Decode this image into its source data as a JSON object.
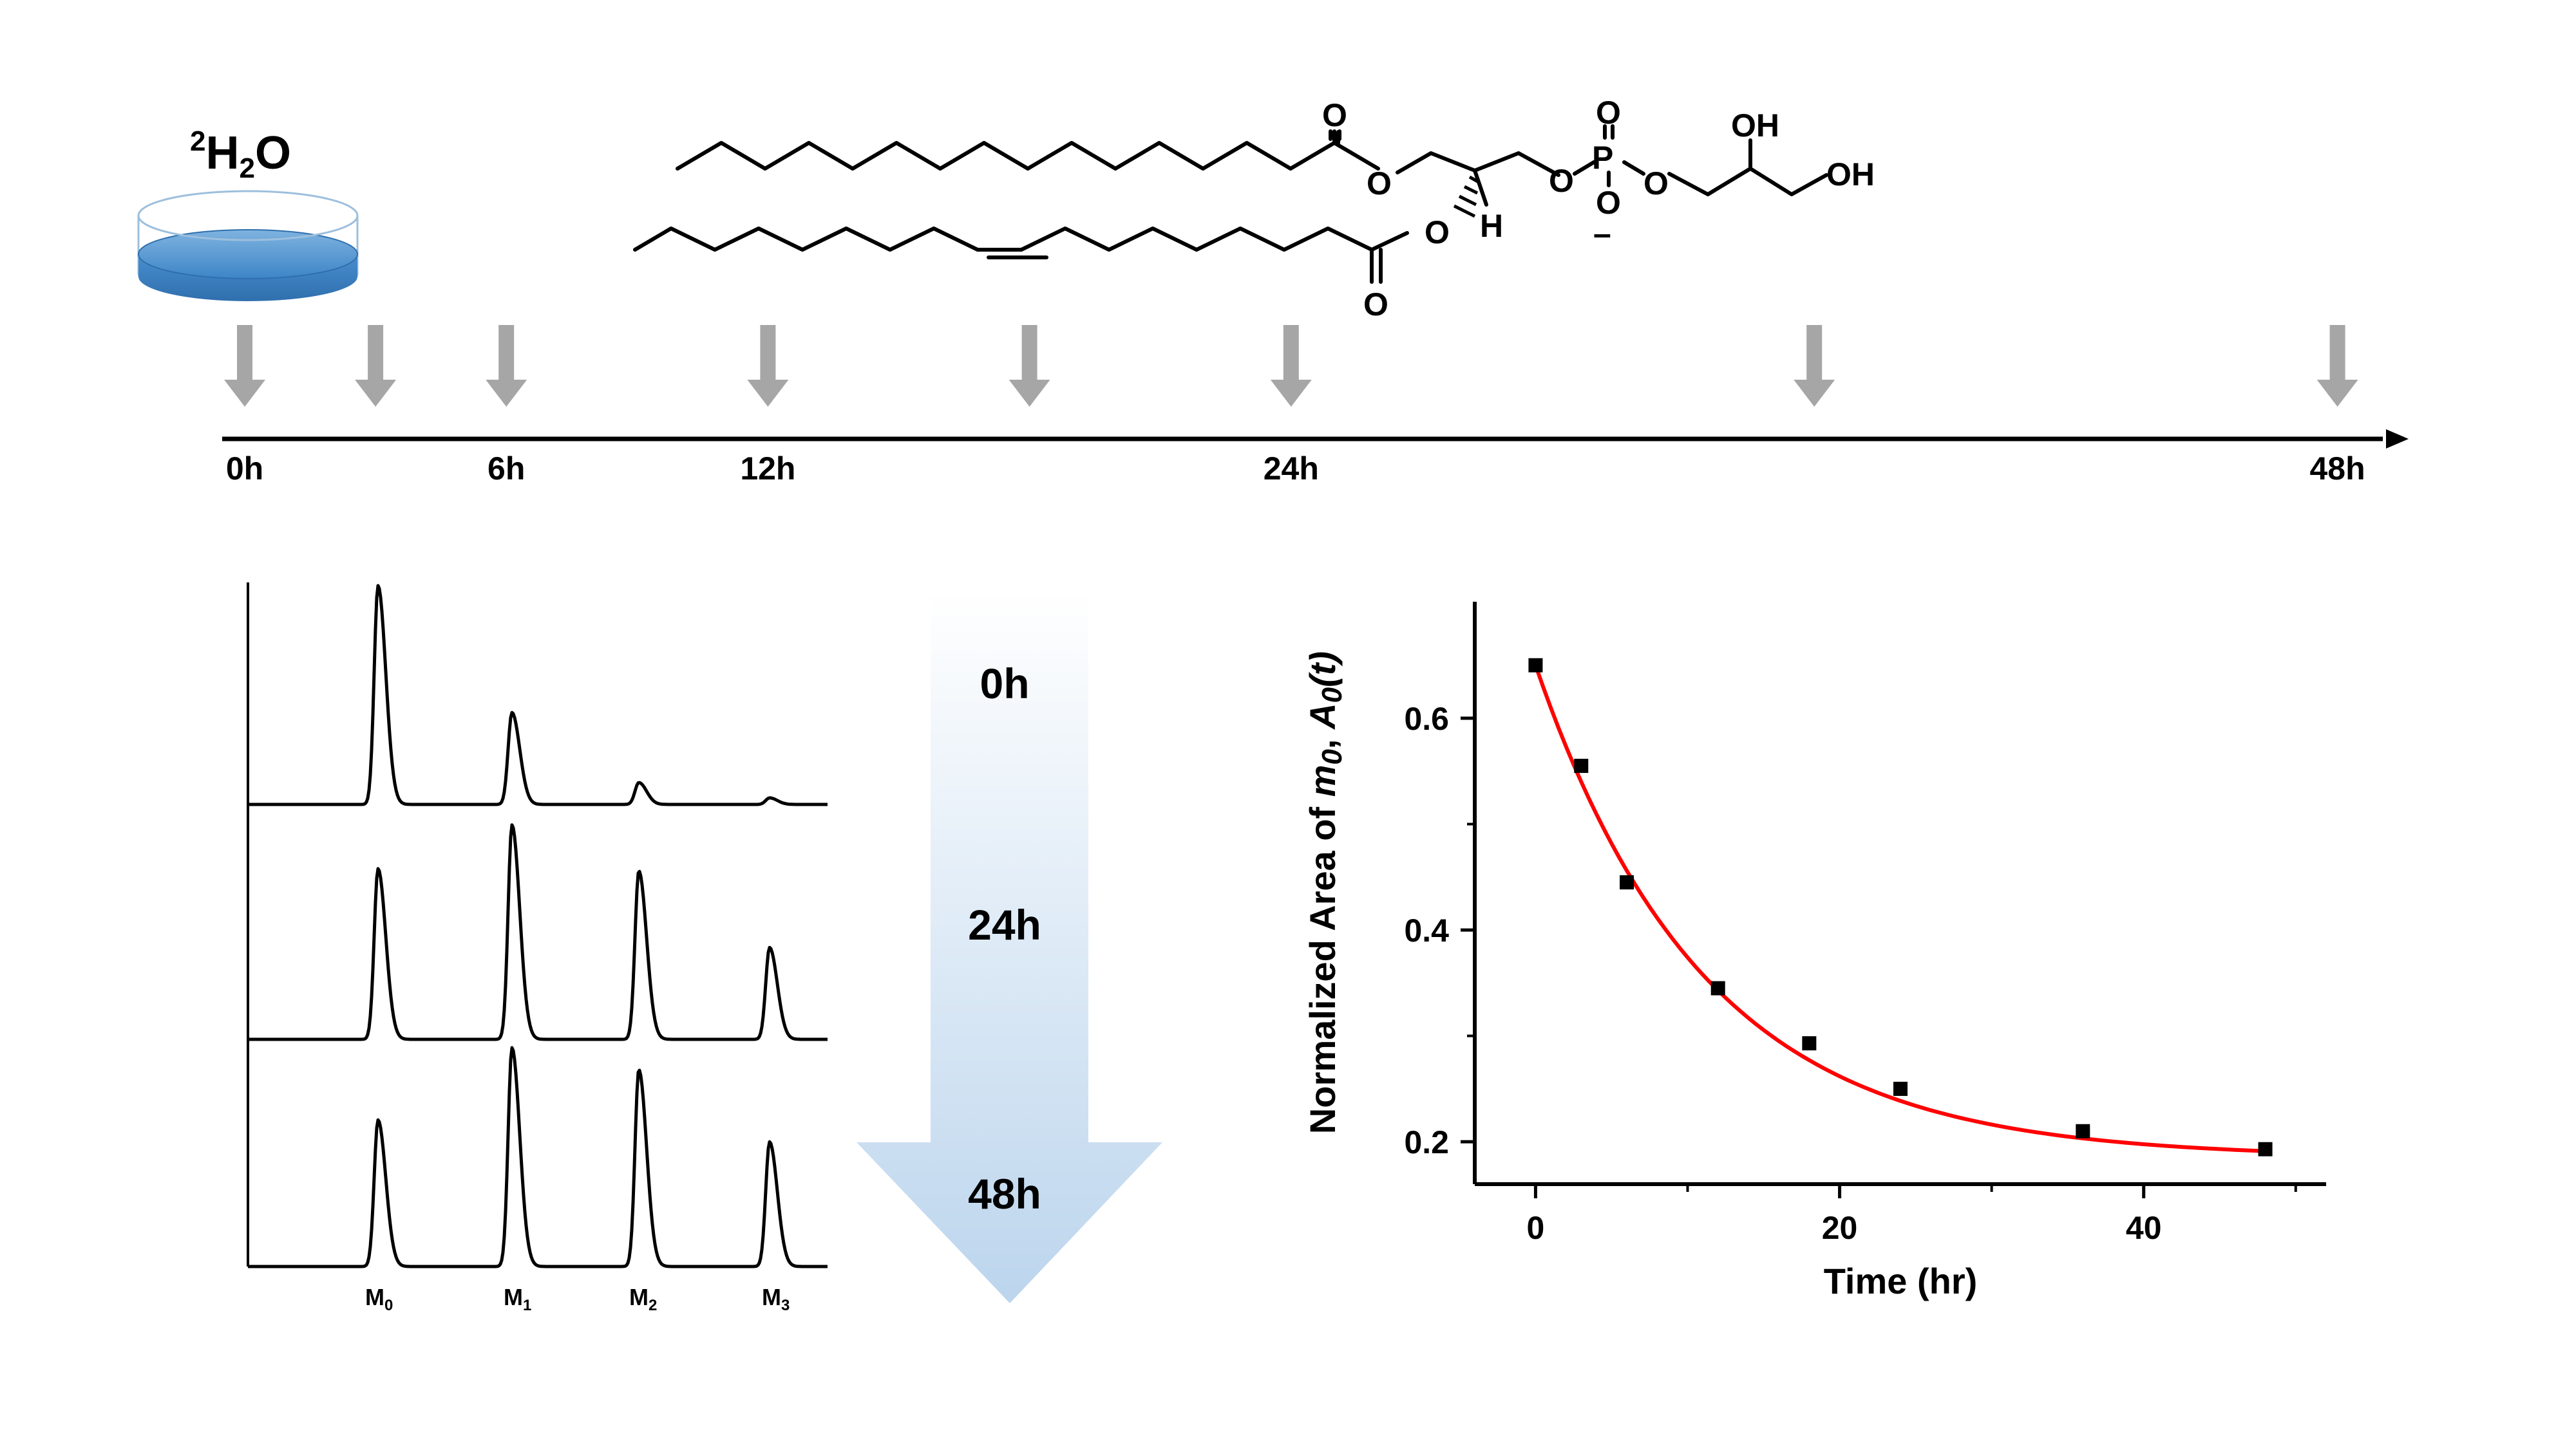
{
  "reagent": {
    "isotope": "2",
    "molecule_main": "H",
    "subscript": "2",
    "molecule_end": "O",
    "color": "#2e75b6"
  },
  "timeline": {
    "labels": [
      {
        "text": "0h",
        "hour": 0
      },
      {
        "text": "6h",
        "hour": 6
      },
      {
        "text": "12h",
        "hour": 12
      },
      {
        "text": "24h",
        "hour": 24
      },
      {
        "text": "48h",
        "hour": 48
      }
    ],
    "sample_hours": [
      0,
      3,
      6,
      12,
      18,
      24,
      36,
      48
    ],
    "arrow_color": "#a6a6a6"
  },
  "molecule": {
    "atoms": {
      "O": "O",
      "P": "P",
      "H": "H",
      "OH": "OH",
      "minus": "–"
    }
  },
  "spectra": {
    "peak_labels": [
      {
        "main": "M",
        "sub": "0"
      },
      {
        "main": "M",
        "sub": "1"
      },
      {
        "main": "M",
        "sub": "2"
      },
      {
        "main": "M",
        "sub": "3"
      }
    ],
    "traces": [
      {
        "time": "0h",
        "intensities": [
          1.0,
          0.42,
          0.1,
          0.03
        ]
      },
      {
        "time": "24h",
        "intensities": [
          0.78,
          0.98,
          0.77,
          0.42
        ]
      },
      {
        "time": "48h",
        "intensities": [
          0.67,
          1.0,
          0.9,
          0.57
        ]
      }
    ]
  },
  "time_arrow": {
    "labels": [
      "0h",
      "24h",
      "48h"
    ],
    "color_top": "#ffffff",
    "color_bottom": "#bcd5ed"
  },
  "chart_data": {
    "type": "scatter",
    "xlabel": "Time (hr)",
    "ylabel_prefix": "Normalized Area of ",
    "ylabel_m": "m",
    "ylabel_sub": "0",
    "ylabel_comma": ", ",
    "ylabel_A": "A",
    "ylabel_t": "(t)",
    "x_ticks": [
      0,
      20,
      40
    ],
    "y_ticks": [
      0.2,
      0.4,
      0.6
    ],
    "xlim": [
      -4,
      52
    ],
    "ylim": [
      0.16,
      0.71
    ],
    "points": [
      {
        "x": 0,
        "y": 0.65
      },
      {
        "x": 3,
        "y": 0.555
      },
      {
        "x": 6,
        "y": 0.445
      },
      {
        "x": 12,
        "y": 0.345
      },
      {
        "x": 18,
        "y": 0.293
      },
      {
        "x": 24,
        "y": 0.25
      },
      {
        "x": 36,
        "y": 0.21
      },
      {
        "x": 48,
        "y": 0.193
      }
    ],
    "fit": {
      "model": "exponential decay",
      "color": "#ff0000",
      "a_inf": 0.185,
      "a0": 0.65,
      "rate": 0.09
    },
    "marker_color": "#000000"
  }
}
